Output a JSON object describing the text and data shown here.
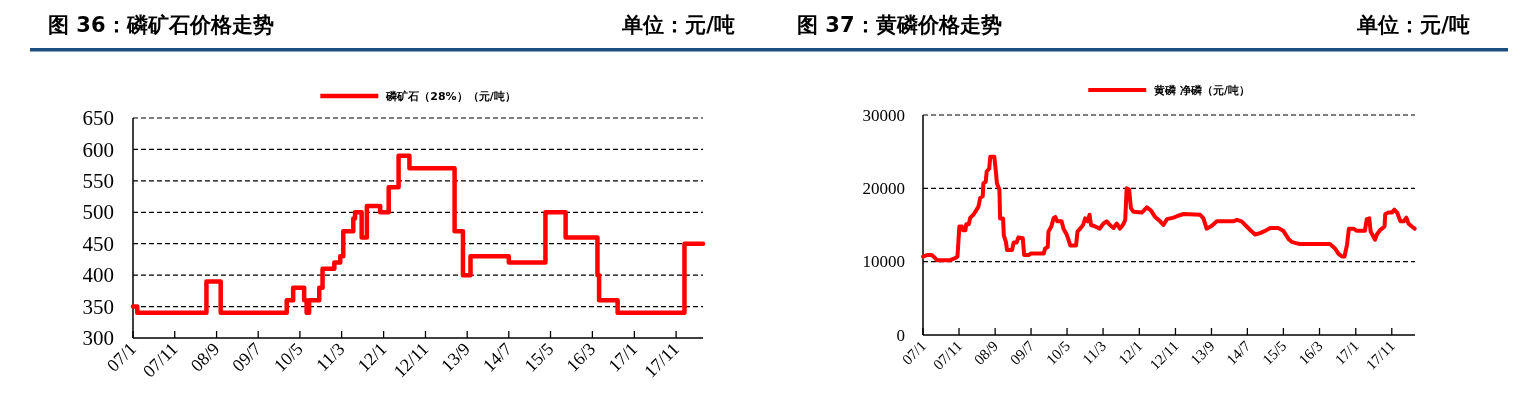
{
  "chart_data": [
    {
      "type": "step",
      "title": "图 36：磷矿石价格走势",
      "subtitle": "单位：元/吨",
      "x": [
        "2007-01-01",
        "2007-02-01",
        "2008-06-19",
        "2008-10-01",
        "2010-01-25",
        "2010-03-13",
        "2010-06-01",
        "2010-06-19",
        "2010-07-07",
        "2010-09-19",
        "2010-10-13",
        "2011-01-07",
        "2011-02-19",
        "2011-03-13",
        "2011-05-25",
        "2011-06-07",
        "2011-07-25",
        "2011-09-01",
        "2011-12-07",
        "2012-02-07",
        "2012-04-19",
        "2012-07-07",
        "2013-06-01",
        "2013-08-01",
        "2013-09-25",
        "2014-07-01",
        "2015-03-25",
        "2015-08-19",
        "2016-04-07",
        "2016-04-19",
        "2016-09-01",
        "2018-01-01",
        "2018-05-16"
      ],
      "series": [
        {
          "name": "磷矿石（28%）（元/吨）",
          "color": "#ff0000",
          "values": [
            350,
            340,
            390,
            340,
            360,
            380,
            360,
            340,
            360,
            380,
            410,
            420,
            430,
            470,
            490,
            500,
            460,
            510,
            500,
            540,
            590,
            570,
            470,
            400,
            430,
            420,
            500,
            460,
            400,
            360,
            340,
            450,
            450
          ]
        }
      ],
      "xlim": [
        "2007-01-01",
        "2018-05-16"
      ],
      "xticks": [
        {
          "value": "2007-01",
          "label": "07/1"
        },
        {
          "value": "2007-11",
          "label": "07/11"
        },
        {
          "value": "2008-09",
          "label": "08/9"
        },
        {
          "value": "2009-07",
          "label": "09/7"
        },
        {
          "value": "2010-05",
          "label": "10/5"
        },
        {
          "value": "2011-03",
          "label": "11/3"
        },
        {
          "value": "2012-01",
          "label": "12/1"
        },
        {
          "value": "2012-11",
          "label": "12/11"
        },
        {
          "value": "2013-09",
          "label": "13/9"
        },
        {
          "value": "2014-07",
          "label": "14/7"
        },
        {
          "value": "2015-05",
          "label": "15/5"
        },
        {
          "value": "2016-03",
          "label": "16/3"
        },
        {
          "value": "2017-01",
          "label": "17/1"
        },
        {
          "value": "2017-11",
          "label": "17/11"
        }
      ],
      "ylim": [
        300,
        650
      ],
      "yticks": [
        300,
        350,
        400,
        450,
        500,
        550,
        600,
        650
      ],
      "grid": "y",
      "legend": "top",
      "line_style": "solid"
    },
    {
      "type": "line",
      "title": "图 37：黄磷价格走势",
      "subtitle": "单位：元/吨",
      "x": [
        "2007-01-01",
        "2007-02-04",
        "2007-03-16",
        "2007-04-13",
        "2007-04-28",
        "2007-08-19",
        "2007-10-01",
        "2007-10-19",
        "2007-11-04",
        "2007-11-25",
        "2007-12-04",
        "2007-12-25",
        "2008-01-01",
        "2008-01-22",
        "2008-02-04",
        "2008-03-01",
        "2008-03-25",
        "2008-04-13",
        "2008-04-28",
        "2008-05-19",
        "2008-05-25",
        "2008-06-13",
        "2008-06-22",
        "2008-07-13",
        "2008-07-22",
        "2008-08-25",
        "2008-09-07",
        "2008-09-16",
        "2008-10-07",
        "2008-10-13",
        "2008-11-07",
        "2008-11-13",
        "2008-12-01",
        "2008-12-10",
        "2009-01-22",
        "2009-02-04",
        "2009-03-01",
        "2009-03-16",
        "2009-04-22",
        "2009-05-04",
        "2009-06-10",
        "2009-06-28",
        "2009-10-16",
        "2009-10-28",
        "2009-11-19",
        "2009-11-25",
        "2009-12-19",
        "2010-01-07",
        "2010-01-22",
        "2010-02-07",
        "2010-03-16",
        "2010-04-01",
        "2010-04-28",
        "2010-05-19",
        "2010-05-28",
        "2010-07-16",
        "2010-07-28",
        "2010-08-19",
        "2010-09-13",
        "2010-10-01",
        "2010-10-22",
        "2010-11-07",
        "2010-11-19",
        "2010-12-25",
        "2011-02-01",
        "2011-03-04",
        "2011-04-01",
        "2011-04-28",
        "2011-05-28",
        "2011-06-25",
        "2011-07-22",
        "2011-08-19",
        "2011-09-04",
        "2011-09-16",
        "2011-10-07",
        "2011-10-22",
        "2011-11-13",
        "2012-01-22",
        "2012-03-04",
        "2012-04-07",
        "2012-05-13",
        "2012-06-25",
        "2012-07-22",
        "2012-08-22",
        "2012-10-16",
        "2012-11-28",
        "2013-01-10",
        "2013-05-28",
        "2013-06-25",
        "2013-07-22",
        "2013-09-04",
        "2013-10-16",
        "2014-03-04",
        "2014-04-04",
        "2014-05-13",
        "2014-06-25",
        "2014-08-07",
        "2014-09-04",
        "2014-10-16",
        "2014-11-28",
        "2015-01-10",
        "2015-03-19",
        "2015-05-01",
        "2015-06-13",
        "2015-07-10",
        "2015-08-22",
        "2015-09-19",
        "2016-05-28",
        "2016-07-10",
        "2016-08-07",
        "2016-09-07",
        "2016-09-28",
        "2016-10-19",
        "2016-11-04",
        "2016-12-13",
        "2017-01-10",
        "2017-03-19",
        "2017-04-04",
        "2017-04-25",
        "2017-05-07",
        "2017-06-13",
        "2017-06-28",
        "2017-07-25",
        "2017-09-01",
        "2017-09-07",
        "2017-10-04",
        "2017-11-04",
        "2017-11-22",
        "2017-12-16",
        "2018-01-13",
        "2018-02-10",
        "2018-03-04",
        "2018-03-22",
        "2018-04-19",
        "2018-05-13"
      ],
      "series": [
        {
          "name": "黄磷 净磷（元/吨）",
          "color": "#ff0000",
          "values": [
            10700,
            10900,
            10900,
            10500,
            10200,
            10200,
            10500,
            10700,
            14800,
            14800,
            14300,
            14300,
            15100,
            15100,
            16000,
            16400,
            17000,
            17500,
            18700,
            18900,
            20700,
            20900,
            22300,
            22700,
            24300,
            24300,
            22300,
            20700,
            19800,
            15900,
            15900,
            13600,
            12700,
            11600,
            11600,
            12600,
            12600,
            13300,
            13200,
            10900,
            10900,
            11100,
            11100,
            11800,
            12000,
            14100,
            14800,
            15900,
            16100,
            15500,
            15500,
            14500,
            13700,
            12700,
            12200,
            12200,
            14100,
            14500,
            15000,
            15900,
            15500,
            16400,
            15000,
            14800,
            14500,
            15200,
            15500,
            15000,
            14600,
            15200,
            14500,
            15100,
            15700,
            20000,
            19800,
            17300,
            16800,
            16700,
            17400,
            17000,
            16100,
            15500,
            15000,
            15800,
            16000,
            16300,
            16500,
            16400,
            15900,
            14500,
            14900,
            15500,
            15500,
            15700,
            15500,
            14800,
            14100,
            13700,
            13900,
            14200,
            14600,
            14600,
            14200,
            13100,
            12700,
            12500,
            12400,
            12400,
            11800,
            11100,
            10700,
            10700,
            12300,
            14500,
            14500,
            14200,
            14200,
            15800,
            15900,
            14100,
            13000,
            13700,
            14300,
            14800,
            16500,
            16700,
            16700,
            17100,
            16700,
            15500,
            15500,
            16000,
            15200,
            14800,
            14500
          ]
        }
      ],
      "xlim": [
        "2007-01-01",
        "2018-05-16"
      ],
      "xticks": [
        {
          "value": "2007-01",
          "label": "07/1"
        },
        {
          "value": "2007-11",
          "label": "07/11"
        },
        {
          "value": "2008-09",
          "label": "08/9"
        },
        {
          "value": "2009-07",
          "label": "09/7"
        },
        {
          "value": "2010-05",
          "label": "10/5"
        },
        {
          "value": "2011-03",
          "label": "11/3"
        },
        {
          "value": "2012-01",
          "label": "12/1"
        },
        {
          "value": "2012-11",
          "label": "12/11"
        },
        {
          "value": "2013-09",
          "label": "13/9"
        },
        {
          "value": "2014-07",
          "label": "14/7"
        },
        {
          "value": "2015-05",
          "label": "15/5"
        },
        {
          "value": "2016-03",
          "label": "16/3"
        },
        {
          "value": "2017-01",
          "label": "17/1"
        },
        {
          "value": "2017-11",
          "label": "17/11"
        }
      ],
      "ylim": [
        0,
        30000
      ],
      "yticks": [
        0,
        10000,
        20000,
        30000
      ],
      "grid": "y",
      "legend": "top",
      "line_style": "solid"
    }
  ]
}
